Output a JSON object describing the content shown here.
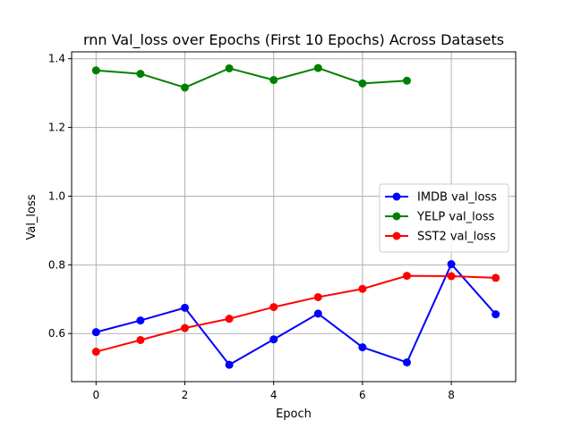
{
  "chart_data": {
    "type": "line",
    "title": "rnn Val_loss over Epochs (First 10 Epochs) Across Datasets",
    "xlabel": "Epoch",
    "ylabel": "Val_loss",
    "xlim": [
      -0.55,
      9.45
    ],
    "ylim": [
      0.46,
      1.42
    ],
    "xticks": [
      0,
      2,
      4,
      6,
      8
    ],
    "yticks": [
      0.6,
      0.8,
      1.0,
      1.2,
      1.4
    ],
    "grid": true,
    "legend_position": "center-right",
    "series": [
      {
        "name": "IMDB val_loss",
        "color": "#0000ff",
        "x": [
          0,
          1,
          2,
          3,
          4,
          5,
          6,
          7,
          8,
          9
        ],
        "y": [
          0.604,
          0.638,
          0.675,
          0.509,
          0.583,
          0.658,
          0.56,
          0.516,
          0.802,
          0.656
        ]
      },
      {
        "name": "YELP val_loss",
        "color": "#008000",
        "x": [
          0,
          1,
          2,
          3,
          4,
          5,
          6,
          7
        ],
        "y": [
          1.366,
          1.356,
          1.316,
          1.372,
          1.338,
          1.373,
          1.328,
          1.336
        ]
      },
      {
        "name": "SST2 val_loss",
        "color": "#ff0000",
        "x": [
          0,
          1,
          2,
          3,
          4,
          5,
          6,
          7,
          8,
          9
        ],
        "y": [
          0.547,
          0.581,
          0.616,
          0.643,
          0.677,
          0.706,
          0.73,
          0.768,
          0.767,
          0.762
        ]
      }
    ]
  }
}
